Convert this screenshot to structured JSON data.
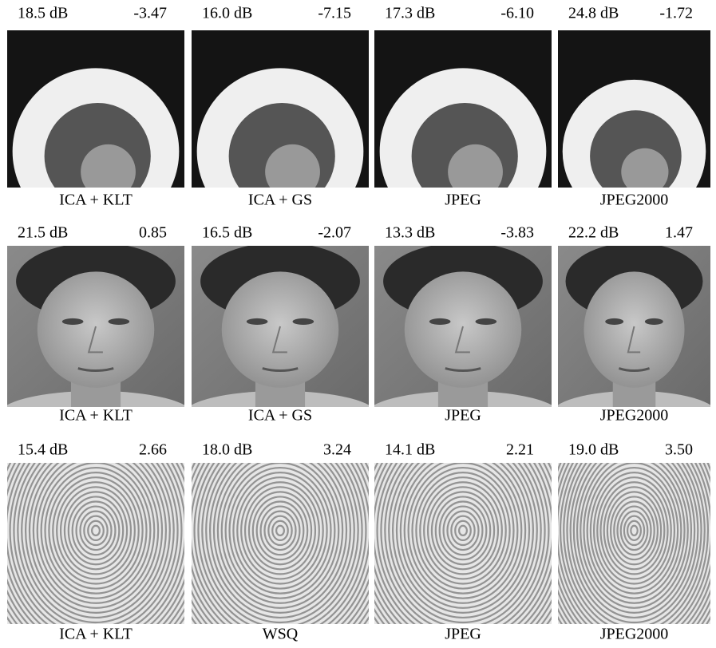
{
  "rows": [
    {
      "panels": [
        {
          "psnr": "18.5 dB",
          "value": "-3.47",
          "caption": "ICA + KLT"
        },
        {
          "psnr": "16.0 dB",
          "value": "-7.15",
          "caption": "ICA + GS"
        },
        {
          "psnr": "17.3 dB",
          "value": "-6.10",
          "caption": "JPEG"
        },
        {
          "psnr": "24.8 dB",
          "value": "-1.72",
          "caption": "JPEG2000"
        }
      ]
    },
    {
      "panels": [
        {
          "psnr": "21.5 dB",
          "value": "0.85",
          "caption": "ICA + KLT"
        },
        {
          "psnr": "16.5 dB",
          "value": "-2.07",
          "caption": "ICA + GS"
        },
        {
          "psnr": "13.3 dB",
          "value": "-3.83",
          "caption": "JPEG"
        },
        {
          "psnr": "22.2 dB",
          "value": "1.47",
          "caption": "JPEG2000"
        }
      ]
    },
    {
      "panels": [
        {
          "psnr": "15.4 dB",
          "value": "2.66",
          "caption": "ICA + KLT"
        },
        {
          "psnr": "18.0 dB",
          "value": "3.24",
          "caption": "WSQ"
        },
        {
          "psnr": "14.1 dB",
          "value": "2.21",
          "caption": "JPEG"
        },
        {
          "psnr": "19.0 dB",
          "value": "3.50",
          "caption": "JPEG2000"
        }
      ]
    }
  ]
}
